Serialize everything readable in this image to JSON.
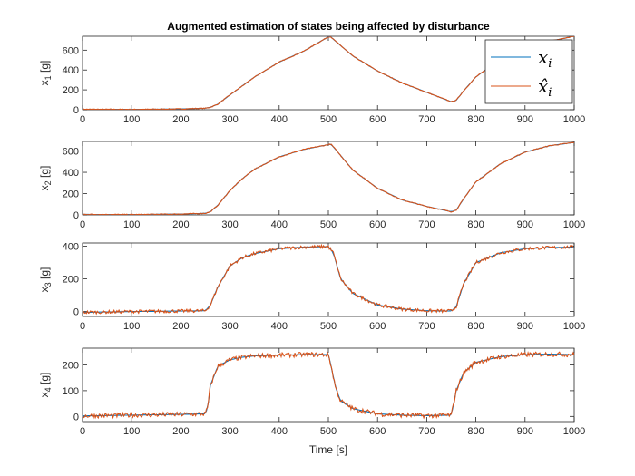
{
  "chart_data": {
    "type": "line",
    "title": "Augmented estimation of states being affected by disturbance",
    "xlabel": "Time [s]",
    "xlim": [
      0,
      1000
    ],
    "xticks": [
      0,
      100,
      200,
      300,
      400,
      500,
      600,
      700,
      800,
      900,
      1000
    ],
    "colors": {
      "true": "#0072BD",
      "estimate": "#D95319"
    },
    "legend": {
      "placement": "top-right",
      "entries": [
        "x_i",
        "x̂_i"
      ]
    },
    "legend_display": {
      "true_base": "x",
      "est_base": "x̂",
      "sub": "i"
    },
    "subplots": [
      {
        "ylabel": "x_1 [g]",
        "ylabel_base": "x",
        "ylabel_sub": "1",
        "ylabel_unit": "[g]",
        "ylim": [
          0,
          740
        ],
        "yticks": [
          0,
          200,
          400,
          600
        ],
        "noise": 4,
        "series": [
          {
            "name": "x_i",
            "x": [
              0,
              100,
              200,
              250,
              260,
              275,
              300,
              325,
              350,
              400,
              450,
              500,
              505,
              510,
              550,
              600,
              650,
              700,
              750,
              760,
              775,
              800,
              850,
              900,
              950,
              1000
            ],
            "y": [
              5,
              3,
              8,
              15,
              25,
              55,
              150,
              240,
              330,
              480,
              590,
              735,
              735,
              710,
              540,
              390,
              270,
              175,
              80,
              95,
              190,
              330,
              510,
              620,
              690,
              740
            ]
          }
        ]
      },
      {
        "ylabel": "x_2 [g]",
        "ylabel_base": "x",
        "ylabel_sub": "2",
        "ylabel_unit": "[g]",
        "ylim": [
          0,
          690
        ],
        "yticks": [
          0,
          200,
          400,
          600
        ],
        "noise": 4,
        "series": [
          {
            "name": "x_i",
            "x": [
              0,
              100,
              200,
              250,
              260,
              275,
              300,
              325,
              350,
              400,
              450,
              500,
              505,
              510,
              550,
              600,
              650,
              700,
              750,
              760,
              775,
              800,
              850,
              900,
              950,
              1000
            ],
            "y": [
              5,
              3,
              8,
              15,
              30,
              90,
              230,
              340,
              430,
              545,
              615,
              660,
              665,
              640,
              420,
              250,
              140,
              80,
              30,
              45,
              150,
              310,
              480,
              590,
              650,
              680
            ]
          }
        ]
      },
      {
        "ylabel": "x_3 [g]",
        "ylabel_base": "x",
        "ylabel_sub": "3",
        "ylabel_unit": "[g]",
        "ylim": [
          -30,
          420
        ],
        "yticks": [
          0,
          200,
          400
        ],
        "noise": 10,
        "series": [
          {
            "name": "x_i",
            "x": [
              0,
              100,
              200,
              250,
              260,
              275,
              300,
              325,
              350,
              400,
              450,
              500,
              510,
              525,
              550,
              600,
              650,
              700,
              750,
              760,
              775,
              800,
              850,
              900,
              950,
              1000
            ],
            "y": [
              -5,
              0,
              3,
              5,
              40,
              150,
              280,
              330,
              355,
              385,
              395,
              398,
              360,
              200,
              110,
              40,
              15,
              5,
              3,
              30,
              170,
              300,
              360,
              385,
              392,
              395
            ]
          }
        ]
      },
      {
        "ylabel": "x_4 [g]",
        "ylabel_base": "x",
        "ylabel_sub": "4",
        "ylabel_unit": "[g]",
        "ylim": [
          -20,
          265
        ],
        "yticks": [
          0,
          100,
          200
        ],
        "noise": 9,
        "series": [
          {
            "name": "x_i",
            "x": [
              0,
              100,
              200,
              250,
              255,
              260,
              275,
              300,
              325,
              350,
              400,
              450,
              500,
              505,
              515,
              525,
              550,
              600,
              650,
              700,
              750,
              760,
              775,
              800,
              850,
              900,
              950,
              1000
            ],
            "y": [
              2,
              5,
              8,
              10,
              40,
              120,
              195,
              220,
              230,
              235,
              238,
              240,
              240,
              200,
              110,
              60,
              30,
              10,
              5,
              3,
              5,
              100,
              170,
              210,
              232,
              240,
              242,
              240
            ]
          }
        ]
      }
    ]
  }
}
